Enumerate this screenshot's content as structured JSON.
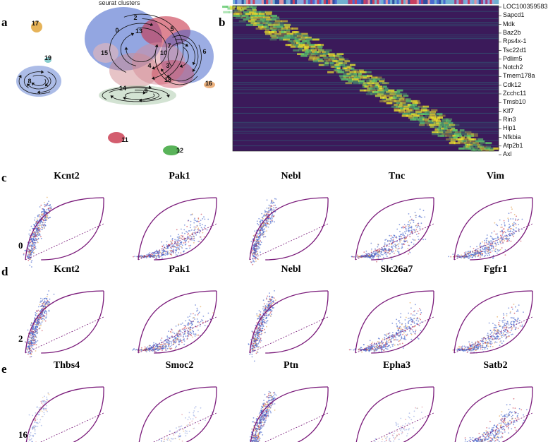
{
  "panels": {
    "a": {
      "letter": "a",
      "title": "seurat clusters",
      "clusters": [
        "0",
        "2",
        "5",
        "6",
        "7",
        "10",
        "13",
        "15",
        "3",
        "4",
        "18",
        "14",
        "9",
        "16",
        "17",
        "19",
        "8",
        "11",
        "12"
      ]
    },
    "b": {
      "letter": "b",
      "genes": [
        "LOC100359583",
        "Sapcd1",
        "Mdk",
        "Baz2b",
        "Rps4x-1",
        "Tsc22d1",
        "Pdlim5",
        "Notch2",
        "Tmem178a",
        "Cdk12",
        "Zcchc11",
        "Tmsb10",
        "Klf7",
        "Rin3",
        "Hip1",
        "Nfkbia",
        "Atp2b1",
        "Axl"
      ]
    },
    "c": {
      "letter": "c",
      "cluster": "0",
      "genes": [
        "Kcnt2",
        "Pak1",
        "Nebl",
        "Tnc",
        "Vim"
      ]
    },
    "d": {
      "letter": "d",
      "cluster": "2",
      "genes": [
        "Kcnt2",
        "Pak1",
        "Nebl",
        "Slc26a7",
        "Fgfr1"
      ]
    },
    "e": {
      "letter": "e",
      "cluster": "16",
      "genes": [
        "Thbs4",
        "Smoc2",
        "Ptn",
        "Epha3",
        "Satb2"
      ]
    }
  },
  "colors": {
    "accent_purple": "#7a1a7a",
    "cell_blue": "#3a5cc8",
    "cell_red": "#c8344a",
    "heat_low": "#3b1a5a",
    "heat_high": "#f0e62a"
  }
}
